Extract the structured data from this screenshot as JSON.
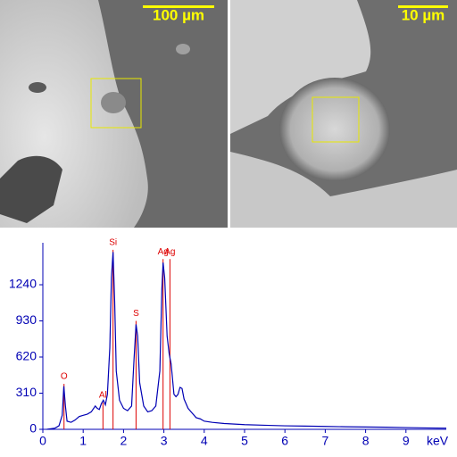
{
  "images": [
    {
      "scale_label": "100 µm"
    },
    {
      "scale_label": "10 µm"
    }
  ],
  "chart_data": {
    "type": "line",
    "x_label": "keV",
    "xlim": [
      0,
      10
    ],
    "ylim": [
      0,
      1600
    ],
    "xticks": [
      0,
      1,
      2,
      3,
      4,
      5,
      6,
      7,
      8,
      9
    ],
    "yticks": [
      0,
      310,
      620,
      930,
      1240
    ],
    "series": [
      {
        "color": "#0000b4",
        "x": [
          0.1,
          0.2,
          0.3,
          0.4,
          0.48,
          0.52,
          0.56,
          0.6,
          0.7,
          0.8,
          0.9,
          1.0,
          1.1,
          1.2,
          1.3,
          1.35,
          1.4,
          1.45,
          1.5,
          1.55,
          1.6,
          1.66,
          1.7,
          1.74,
          1.78,
          1.82,
          1.9,
          2.0,
          2.1,
          2.2,
          2.26,
          2.31,
          2.35,
          2.4,
          2.5,
          2.6,
          2.7,
          2.8,
          2.9,
          2.95,
          2.98,
          3.02,
          3.08,
          3.13,
          3.18,
          3.25,
          3.3,
          3.35,
          3.4,
          3.45,
          3.5,
          3.6,
          3.7,
          3.8,
          3.9,
          4.0,
          4.2,
          4.5,
          5.0,
          5.5,
          6.0,
          6.5,
          7.0,
          7.5,
          8.0,
          8.5,
          9.0,
          9.5,
          10.0
        ],
        "values": [
          0,
          5,
          10,
          30,
          120,
          370,
          200,
          70,
          60,
          80,
          110,
          120,
          130,
          150,
          200,
          180,
          170,
          220,
          250,
          210,
          300,
          700,
          1300,
          1520,
          1100,
          500,
          250,
          180,
          160,
          200,
          600,
          900,
          800,
          400,
          200,
          150,
          160,
          200,
          500,
          1200,
          1430,
          1300,
          800,
          650,
          560,
          300,
          280,
          300,
          360,
          350,
          260,
          180,
          140,
          100,
          90,
          70,
          60,
          50,
          40,
          35,
          30,
          28,
          25,
          22,
          20,
          18,
          15,
          12,
          10
        ]
      }
    ],
    "markers": [
      {
        "label": "O",
        "x": 0.525,
        "value": 390
      },
      {
        "label": "Al",
        "x": 1.49,
        "value": 230
      },
      {
        "label": "Si",
        "x": 1.74,
        "value": 1540
      },
      {
        "label": "S",
        "x": 2.31,
        "value": 930
      },
      {
        "label": "Ag",
        "x": 2.98,
        "value": 1460
      },
      {
        "label": "Ag",
        "x": 3.15,
        "value": 1460
      }
    ],
    "marker_color": "#dd0000"
  }
}
